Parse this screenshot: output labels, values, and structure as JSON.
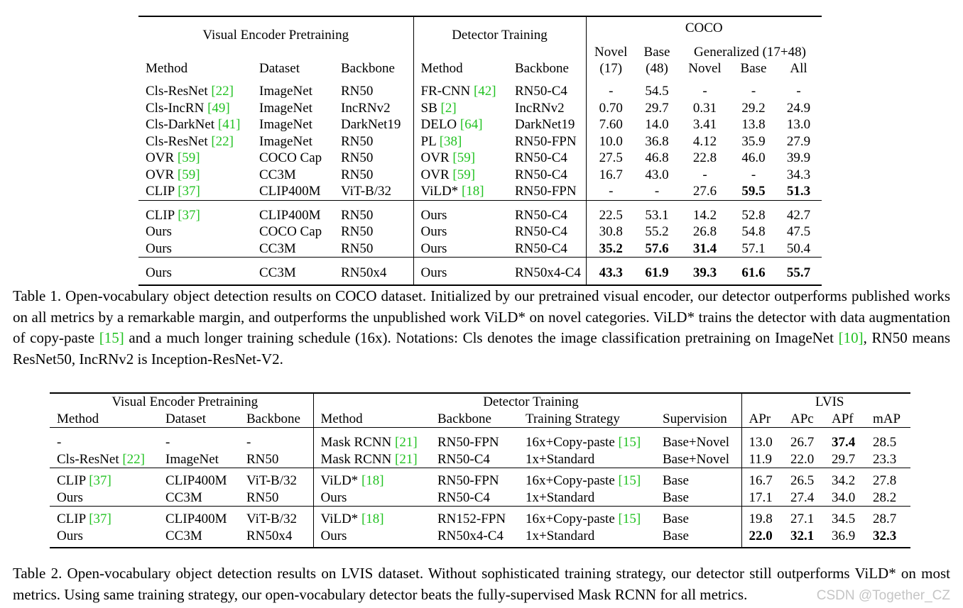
{
  "table1": {
    "header": {
      "group_left": "Visual Encoder Pretraining",
      "group_mid": "Detector Training",
      "group_right": "COCO",
      "generalized": "Generalized (17+48)",
      "novel_top": "Novel",
      "novel_sub": "(17)",
      "base_top": "Base",
      "base_sub": "(48)",
      "cols": [
        "Method",
        "Dataset",
        "Backbone",
        "Method",
        "Backbone",
        "Novel",
        "Base",
        "All"
      ]
    },
    "rows": [
      {
        "m": "Cls-ResNet ",
        "mref": "[22]",
        "ds": "ImageNet",
        "bb": "RN50",
        "dm": "FR-CNN ",
        "dref": "[42]",
        "dbb": "RN50-C4",
        "n17": "-",
        "b48": "54.5",
        "gn": "-",
        "gb": "-",
        "ga": "-"
      },
      {
        "m": "Cls-IncRN ",
        "mref": "[49]",
        "ds": "ImageNet",
        "bb": "IncRNv2",
        "dm": "SB ",
        "dref": "[2]",
        "dbb": "IncRNv2",
        "n17": "0.70",
        "b48": "29.7",
        "gn": "0.31",
        "gb": "29.2",
        "ga": "24.9"
      },
      {
        "m": "Cls-DarkNet ",
        "mref": "[41]",
        "ds": "ImageNet",
        "bb": "DarkNet19",
        "dm": "DELO ",
        "dref": "[64]",
        "dbb": "DarkNet19",
        "n17": "7.60",
        "b48": "14.0",
        "gn": "3.41",
        "gb": "13.8",
        "ga": "13.0"
      },
      {
        "m": "Cls-ResNet ",
        "mref": "[22]",
        "ds": "ImageNet",
        "bb": "RN50",
        "dm": "PL ",
        "dref": "[38]",
        "dbb": "RN50-FPN",
        "n17": "10.0",
        "b48": "36.8",
        "gn": "4.12",
        "gb": "35.9",
        "ga": "27.9"
      },
      {
        "m": "OVR ",
        "mref": "[59]",
        "ds": "COCO Cap",
        "bb": "RN50",
        "dm": "OVR ",
        "dref": "[59]",
        "dbb": "RN50-C4",
        "n17": "27.5",
        "b48": "46.8",
        "gn": "22.8",
        "gb": "46.0",
        "ga": "39.9"
      },
      {
        "m": "OVR ",
        "mref": "[59]",
        "ds": "CC3M",
        "bb": "RN50",
        "dm": "OVR ",
        "dref": "[59]",
        "dbb": "RN50-C4",
        "n17": "16.7",
        "b48": "43.0",
        "gn": "-",
        "gb": "-",
        "ga": "34.3"
      },
      {
        "m": "CLIP ",
        "mref": "[37]",
        "ds": "CLIP400M",
        "bb": "ViT-B/32",
        "dm": "ViLD* ",
        "dref": "[18]",
        "dbb": "RN50-FPN",
        "n17": "-",
        "b48": "-",
        "gn": "27.6",
        "gb": "59.5",
        "ga": "51.3"
      },
      {
        "m": "CLIP ",
        "mref": "[37]",
        "ds": "CLIP400M",
        "bb": "RN50",
        "dm": "Ours",
        "dref": "",
        "dbb": "RN50-C4",
        "n17": "22.5",
        "b48": "53.1",
        "gn": "14.2",
        "gb": "52.8",
        "ga": "42.7"
      },
      {
        "m": "Ours",
        "mref": "",
        "ds": "COCO Cap",
        "bb": "RN50",
        "dm": "Ours",
        "dref": "",
        "dbb": "RN50-C4",
        "n17": "30.8",
        "b48": "55.2",
        "gn": "26.8",
        "gb": "54.8",
        "ga": "47.5"
      },
      {
        "m": "Ours",
        "mref": "",
        "ds": "CC3M",
        "bb": "RN50",
        "dm": "Ours",
        "dref": "",
        "dbb": "RN50-C4",
        "n17": "35.2",
        "b48": "57.6",
        "gn": "31.4",
        "gb": "57.1",
        "ga": "50.4"
      },
      {
        "m": "Ours",
        "mref": "",
        "ds": "CC3M",
        "bb": "RN50x4",
        "dm": "Ours",
        "dref": "",
        "dbb": "RN50x4-C4",
        "n17": "43.3",
        "b48": "61.9",
        "gn": "39.3",
        "gb": "61.6",
        "ga": "55.7"
      }
    ]
  },
  "caption1": {
    "text_a": "Table 1. Open-vocabulary object detection results on COCO dataset. Initialized by our pretrained visual encoder, our detector outperforms published works on all metrics by a remarkable margin, and outperforms the unpublished work ViLD* on novel categories. ViLD* trains the detector with data augmentation of copy-paste ",
    "ref_a": "[15]",
    "text_b": " and a much longer training schedule (16x). Notations: Cls denotes the image classification pretraining on ImageNet ",
    "ref_b": "[10]",
    "text_c": ", RN50 means ResNet50, IncRNv2 is Inception-ResNet-V2."
  },
  "table2": {
    "header": {
      "group_left": "Visual Encoder Pretraining",
      "group_mid": "Detector Training",
      "group_right": "LVIS",
      "cols": [
        "Method",
        "Dataset",
        "Backbone",
        "Method",
        "Backbone",
        "Training Strategy",
        "Supervision",
        "APr",
        "APc",
        "APf",
        "mAP"
      ]
    },
    "rows": [
      {
        "m": "-",
        "mref": "",
        "ds": "-",
        "bb": "-",
        "dm": "Mask RCNN ",
        "dref": "[21]",
        "dbb": "RN50-FPN",
        "ts": "16x+Copy-paste ",
        "tref": "[15]",
        "sup": "Base+Novel",
        "apr": "13.0",
        "apc": "26.7",
        "apf": "37.4",
        "map": "28.5"
      },
      {
        "m": "Cls-ResNet ",
        "mref": "[22]",
        "ds": "ImageNet",
        "bb": "RN50",
        "dm": "Mask RCNN ",
        "dref": "[21]",
        "dbb": "RN50-C4",
        "ts": "1x+Standard",
        "tref": "",
        "sup": "Base+Novel",
        "apr": "11.9",
        "apc": "22.0",
        "apf": "29.7",
        "map": "23.3"
      },
      {
        "m": "CLIP ",
        "mref": "[37]",
        "ds": "CLIP400M",
        "bb": "ViT-B/32",
        "dm": "ViLD* ",
        "dref": "[18]",
        "dbb": "RN50-FPN",
        "ts": "16x+Copy-paste ",
        "tref": "[15]",
        "sup": "Base",
        "apr": "16.7",
        "apc": "26.5",
        "apf": "34.2",
        "map": "27.8"
      },
      {
        "m": "Ours",
        "mref": "",
        "ds": "CC3M",
        "bb": "RN50",
        "dm": "Ours",
        "dref": "",
        "dbb": "RN50-C4",
        "ts": "1x+Standard",
        "tref": "",
        "sup": "Base",
        "apr": "17.1",
        "apc": "27.4",
        "apf": "34.0",
        "map": "28.2"
      },
      {
        "m": "CLIP ",
        "mref": "[37]",
        "ds": "CLIP400M",
        "bb": "ViT-B/32",
        "dm": "ViLD* ",
        "dref": "[18]",
        "dbb": "RN152-FPN",
        "ts": "16x+Copy-paste ",
        "tref": "[15]",
        "sup": "Base",
        "apr": "19.8",
        "apc": "27.1",
        "apf": "34.5",
        "map": "28.7"
      },
      {
        "m": "Ours",
        "mref": "",
        "ds": "CC3M",
        "bb": "RN50x4",
        "dm": "Ours",
        "dref": "",
        "dbb": "RN50x4-C4",
        "ts": "1x+Standard",
        "tref": "",
        "sup": "Base",
        "apr": "22.0",
        "apc": "32.1",
        "apf": "36.9",
        "map": "32.3"
      }
    ]
  },
  "caption2": {
    "text": "Table 2. Open-vocabulary object detection results on LVIS dataset. Without sophisticated training strategy, our detector still outperforms ViLD* on most metrics. Using same training strategy, our open-vocabulary detector beats the fully-supervised Mask RCNN for all metrics."
  },
  "watermark": "CSDN @Together_CZ",
  "colors": {
    "ref": "#22c222"
  }
}
